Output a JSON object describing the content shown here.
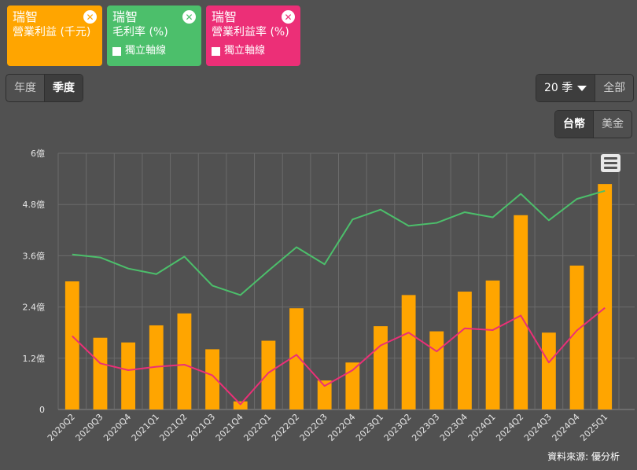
{
  "legend": [
    {
      "company": "瑞智",
      "metric": "營業利益 (千元)",
      "color": "#FFA500",
      "axis_option": ""
    },
    {
      "company": "瑞智",
      "metric": "毛利率 (%)",
      "color": "#4CBF6B",
      "axis_option": "獨立軸線"
    },
    {
      "company": "瑞智",
      "metric": "營業利益率 (%)",
      "color": "#EC2F77",
      "axis_option": "獨立軸線"
    }
  ],
  "period_toggle": {
    "annual": "年度",
    "quarterly": "季度",
    "active": "quarterly"
  },
  "range": {
    "selected": "20 季",
    "all": "全部"
  },
  "currency": {
    "twd": "台幣",
    "usd": "美金",
    "active": "twd"
  },
  "source": "資料來源: 優分析",
  "chart_data": {
    "type": "bar",
    "categories": [
      "2020Q2",
      "2020Q3",
      "2020Q4",
      "2021Q1",
      "2021Q2",
      "2021Q3",
      "2021Q4",
      "2022Q1",
      "2022Q2",
      "2022Q3",
      "2022Q4",
      "2023Q1",
      "2023Q2",
      "2023Q3",
      "2023Q4",
      "2024Q1",
      "2024Q2",
      "2024Q3",
      "2024Q4",
      "2025Q1"
    ],
    "y_ticks": [
      "0",
      "1.2億",
      "2.4億",
      "3.6億",
      "4.8億",
      "6億"
    ],
    "ylim": [
      0,
      6
    ],
    "grid": true,
    "series": [
      {
        "name": "營業利益 (千元)",
        "type": "bar",
        "color": "#FFA500",
        "values": [
          3.0,
          1.68,
          1.57,
          1.97,
          2.25,
          1.41,
          0.19,
          1.61,
          2.37,
          0.68,
          1.1,
          1.95,
          2.68,
          1.83,
          2.76,
          3.02,
          4.55,
          1.8,
          3.37,
          5.28
        ]
      },
      {
        "name": "毛利率 (%)",
        "type": "line",
        "color": "#4CBF6B",
        "values": [
          3.63,
          3.56,
          3.3,
          3.17,
          3.58,
          2.9,
          2.68,
          3.25,
          3.8,
          3.4,
          4.45,
          4.68,
          4.3,
          4.37,
          4.62,
          4.5,
          5.05,
          4.43,
          4.93,
          5.12
        ]
      },
      {
        "name": "營業利益率 (%)",
        "type": "line",
        "color": "#EC2F77",
        "values": [
          1.72,
          1.08,
          0.92,
          1.0,
          1.05,
          0.8,
          0.12,
          0.86,
          1.28,
          0.55,
          0.92,
          1.5,
          1.8,
          1.36,
          1.9,
          1.86,
          2.2,
          1.1,
          1.85,
          2.38
        ]
      }
    ]
  }
}
